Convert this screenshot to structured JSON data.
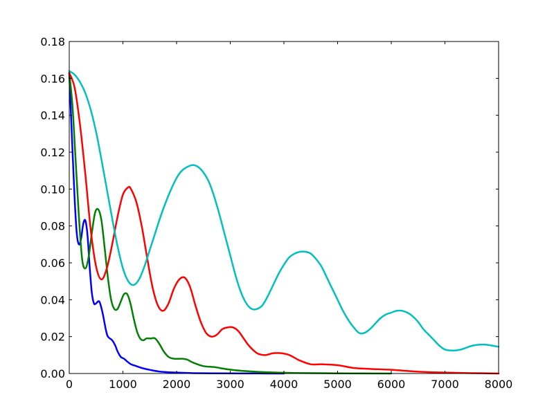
{
  "chart_data": {
    "type": "line",
    "title": "",
    "xlabel": "",
    "ylabel": "",
    "xlim": [
      0,
      8000
    ],
    "ylim": [
      0,
      0.18
    ],
    "grid": false,
    "legend": "none",
    "xticks": [
      0,
      1000,
      2000,
      3000,
      4000,
      5000,
      6000,
      7000,
      8000
    ],
    "xtick_labels": [
      "0",
      "1000",
      "2000",
      "3000",
      "4000",
      "5000",
      "6000",
      "7000",
      "8000"
    ],
    "yticks": [
      0,
      0.02,
      0.04,
      0.06,
      0.08,
      0.1,
      0.12,
      0.14,
      0.16,
      0.18
    ],
    "ytick_labels": [
      "0.00",
      "0.02",
      "0.04",
      "0.06",
      "0.08",
      "0.10",
      "0.12",
      "0.14",
      "0.16",
      "0.18"
    ],
    "series": [
      {
        "color": "#0000ff",
        "x": [
          0,
          50,
          100,
          140,
          180,
          220,
          260,
          300,
          340,
          380,
          420,
          460,
          500,
          560,
          620,
          680,
          720,
          800,
          860,
          900,
          960,
          1020,
          1080,
          1150,
          1250,
          1350,
          1500,
          1700,
          2000,
          2300,
          2700,
          3200,
          4000
        ],
        "y": [
          0.163,
          0.128,
          0.095,
          0.076,
          0.07,
          0.073,
          0.081,
          0.083,
          0.075,
          0.058,
          0.044,
          0.038,
          0.038,
          0.039,
          0.033,
          0.024,
          0.02,
          0.018,
          0.015,
          0.012,
          0.009,
          0.008,
          0.0065,
          0.005,
          0.004,
          0.003,
          0.002,
          0.001,
          0.0005,
          0.0002,
          0.0001,
          5e-05,
          0.0
        ]
      },
      {
        "color": "#008000",
        "x": [
          0,
          60,
          120,
          180,
          240,
          300,
          360,
          420,
          480,
          540,
          600,
          660,
          720,
          780,
          840,
          900,
          960,
          1020,
          1080,
          1140,
          1200,
          1260,
          1320,
          1380,
          1440,
          1520,
          1600,
          1680,
          1760,
          1850,
          1950,
          2100,
          2200,
          2300,
          2500,
          2700,
          2900,
          3200,
          3600,
          4200,
          5000,
          6000
        ],
        "y": [
          0.163,
          0.145,
          0.115,
          0.085,
          0.062,
          0.057,
          0.063,
          0.076,
          0.087,
          0.089,
          0.083,
          0.068,
          0.052,
          0.04,
          0.035,
          0.035,
          0.039,
          0.043,
          0.043,
          0.038,
          0.03,
          0.023,
          0.019,
          0.018,
          0.019,
          0.019,
          0.019,
          0.016,
          0.012,
          0.009,
          0.008,
          0.008,
          0.0075,
          0.006,
          0.004,
          0.0035,
          0.0025,
          0.0015,
          0.0008,
          0.0003,
          0.0001,
          0.0
        ]
      },
      {
        "color": "#ff0000",
        "x": [
          0,
          100,
          200,
          300,
          400,
          500,
          600,
          700,
          800,
          900,
          1000,
          1100,
          1150,
          1250,
          1350,
          1450,
          1550,
          1650,
          1750,
          1850,
          1950,
          2050,
          2150,
          2250,
          2350,
          2450,
          2550,
          2650,
          2750,
          2850,
          2950,
          3050,
          3150,
          3250,
          3350,
          3500,
          3650,
          3800,
          3950,
          4100,
          4300,
          4500,
          4700,
          5000,
          5300,
          5600,
          6000,
          6500,
          7000,
          7500,
          8000
        ],
        "y": [
          0.163,
          0.155,
          0.135,
          0.108,
          0.078,
          0.058,
          0.051,
          0.057,
          0.07,
          0.085,
          0.097,
          0.101,
          0.1,
          0.093,
          0.08,
          0.063,
          0.047,
          0.037,
          0.034,
          0.038,
          0.046,
          0.051,
          0.052,
          0.047,
          0.037,
          0.028,
          0.022,
          0.02,
          0.021,
          0.024,
          0.025,
          0.025,
          0.023,
          0.019,
          0.015,
          0.011,
          0.01,
          0.011,
          0.011,
          0.01,
          0.007,
          0.005,
          0.005,
          0.0045,
          0.003,
          0.0025,
          0.002,
          0.001,
          0.0005,
          0.0002,
          0.0
        ]
      },
      {
        "color": "#00bfbf",
        "x": [
          0,
          100,
          200,
          300,
          400,
          500,
          600,
          700,
          800,
          900,
          1000,
          1100,
          1200,
          1300,
          1400,
          1500,
          1600,
          1700,
          1800,
          1900,
          2000,
          2100,
          2200,
          2300,
          2400,
          2500,
          2600,
          2700,
          2800,
          2900,
          3000,
          3100,
          3200,
          3300,
          3400,
          3500,
          3600,
          3700,
          3800,
          3900,
          4000,
          4100,
          4200,
          4300,
          4400,
          4500,
          4600,
          4700,
          4800,
          4900,
          5000,
          5100,
          5200,
          5300,
          5400,
          5500,
          5600,
          5700,
          5800,
          5900,
          6000,
          6100,
          6200,
          6300,
          6400,
          6500,
          6600,
          6700,
          6800,
          6900,
          7000,
          7100,
          7200,
          7300,
          7400,
          7500,
          7600,
          7700,
          7800,
          7900,
          8000
        ],
        "y": [
          0.164,
          0.162,
          0.158,
          0.152,
          0.143,
          0.131,
          0.116,
          0.1,
          0.084,
          0.069,
          0.057,
          0.05,
          0.048,
          0.051,
          0.058,
          0.067,
          0.076,
          0.085,
          0.093,
          0.1,
          0.106,
          0.11,
          0.112,
          0.113,
          0.112,
          0.109,
          0.104,
          0.096,
          0.086,
          0.075,
          0.064,
          0.053,
          0.044,
          0.038,
          0.035,
          0.035,
          0.037,
          0.042,
          0.048,
          0.054,
          0.059,
          0.063,
          0.065,
          0.066,
          0.066,
          0.065,
          0.062,
          0.058,
          0.052,
          0.046,
          0.04,
          0.034,
          0.029,
          0.025,
          0.022,
          0.022,
          0.024,
          0.027,
          0.03,
          0.032,
          0.033,
          0.034,
          0.034,
          0.033,
          0.031,
          0.028,
          0.024,
          0.021,
          0.018,
          0.015,
          0.013,
          0.0125,
          0.0125,
          0.013,
          0.014,
          0.015,
          0.0155,
          0.0157,
          0.0155,
          0.015,
          0.0145
        ]
      }
    ]
  }
}
